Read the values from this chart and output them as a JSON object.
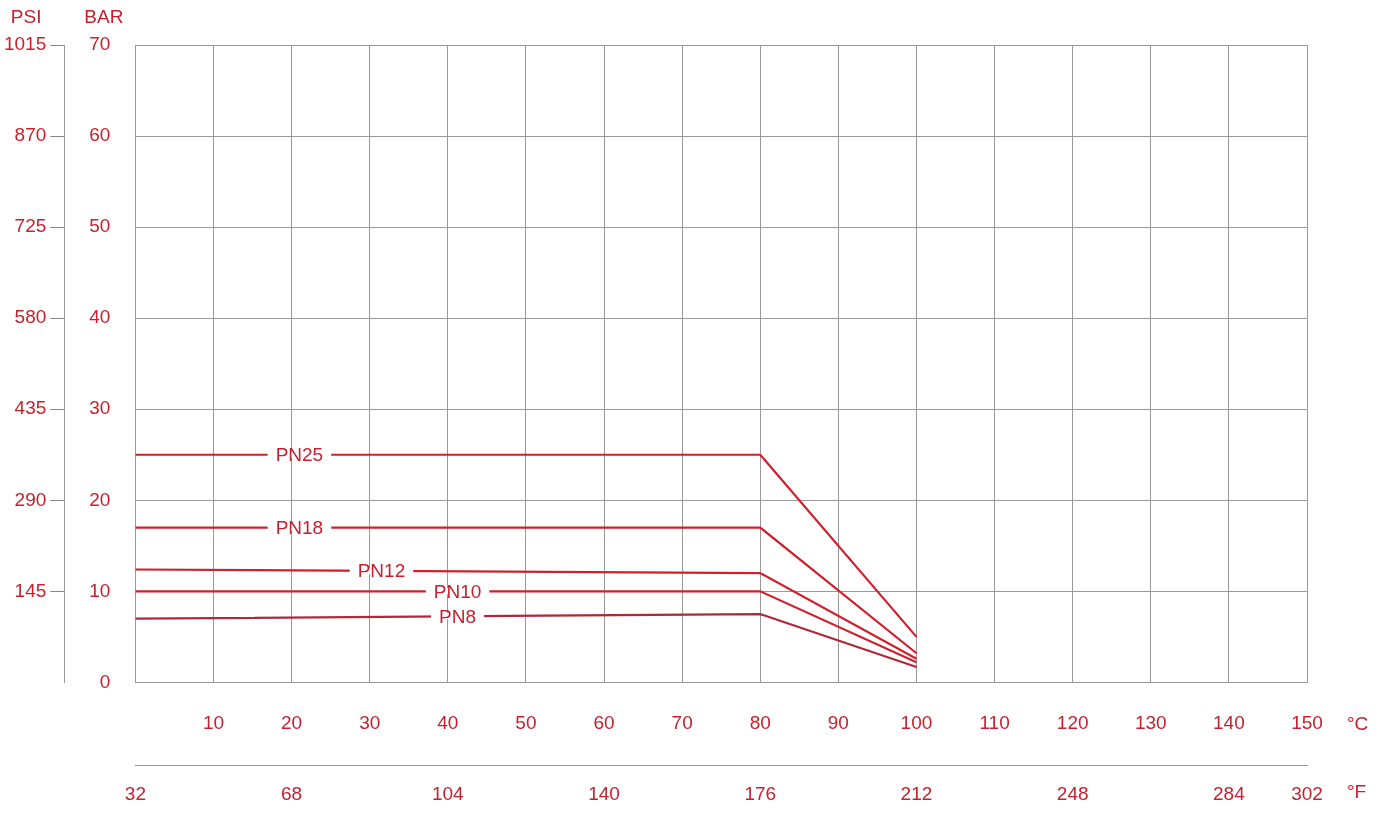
{
  "chart_data": {
    "type": "line",
    "xlabel": "°C",
    "x2label": "°F",
    "ylabel": "BAR",
    "y2label": "PSI",
    "x": [
      0,
      80,
      100
    ],
    "series": [
      {
        "name": "PN25",
        "color": "#d0202e",
        "values": [
          25,
          25,
          5
        ]
      },
      {
        "name": "PN18",
        "color": "#d0202e",
        "values": [
          17,
          17,
          3.2
        ]
      },
      {
        "name": "PN12",
        "color": "#d0202e",
        "values": [
          12.4,
          12,
          2.6
        ]
      },
      {
        "name": "PN10",
        "color": "#d0202e",
        "values": [
          10,
          10,
          2.2
        ]
      },
      {
        "name": "PN8",
        "color": "#b0283a",
        "values": [
          7,
          7.5,
          1.7
        ]
      }
    ],
    "xlim": [
      0,
      150
    ],
    "xticks": [
      10,
      20,
      30,
      40,
      50,
      60,
      70,
      80,
      90,
      100,
      110,
      120,
      130,
      140,
      150
    ],
    "x2lim": [
      32,
      302
    ],
    "x2ticks": [
      32,
      68,
      104,
      140,
      176,
      212,
      248,
      284,
      302
    ],
    "ylim": [
      0,
      70
    ],
    "yticks": [
      0,
      10,
      20,
      30,
      40,
      50,
      60,
      70
    ],
    "y2lim": [
      0,
      1015
    ],
    "y2ticks": [
      145,
      290,
      435,
      580,
      725,
      870,
      1015
    ],
    "grid": true,
    "legend": false,
    "marker": "none",
    "line_style": "solid"
  }
}
